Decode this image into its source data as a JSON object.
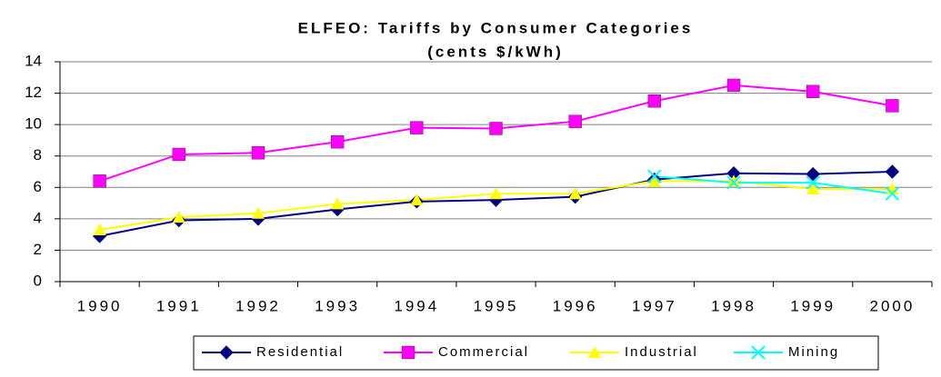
{
  "chart_data": {
    "type": "line",
    "title": "ELFEO: Tariffs by Consumer Categories",
    "subtitle": "(cents $/kWh)",
    "categories": [
      "1990",
      "1991",
      "1992",
      "1993",
      "1994",
      "1995",
      "1996",
      "1997",
      "1998",
      "1999",
      "2000"
    ],
    "series": [
      {
        "name": "Residential",
        "color": "#000080",
        "marker": "diamond",
        "values": [
          2.9,
          3.9,
          4.0,
          4.6,
          5.1,
          5.2,
          5.4,
          6.5,
          6.9,
          6.85,
          7.0
        ]
      },
      {
        "name": "Commercial",
        "color": "#ff00ff",
        "marker": "square",
        "values": [
          6.4,
          8.1,
          8.2,
          8.9,
          9.8,
          9.75,
          10.2,
          11.5,
          12.5,
          12.1,
          11.2
        ]
      },
      {
        "name": "Industrial",
        "color": "#ffff00",
        "marker": "triangle",
        "values": [
          3.3,
          4.1,
          4.35,
          4.95,
          5.2,
          5.6,
          5.6,
          6.4,
          6.4,
          5.9,
          5.9
        ]
      },
      {
        "name": "Mining",
        "color": "#00ffff",
        "marker": "x",
        "values": [
          null,
          null,
          null,
          null,
          null,
          null,
          null,
          6.7,
          6.3,
          6.3,
          5.6
        ]
      }
    ],
    "ylim": [
      0,
      14
    ],
    "yticks": [
      0,
      2,
      4,
      6,
      8,
      10,
      12,
      14
    ],
    "grid": true,
    "legend": "bottom"
  }
}
